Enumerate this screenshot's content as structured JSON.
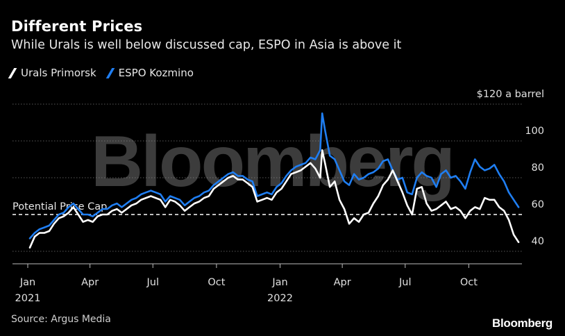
{
  "title": "Different Prices",
  "subtitle": "While Urals is well below discussed cap, ESPO in Asia is above it",
  "source": "Source: Argus Media",
  "logo": "Bloomberg",
  "watermark": "Bloomberg",
  "colors": {
    "urals": "#ffffff",
    "espo": "#1f7ef2",
    "background": "#000000",
    "grid": "#5a5a5a"
  },
  "chart_data": {
    "type": "line",
    "title": "Different Prices",
    "subtitle": "While Urals is well below discussed cap, ESPO in Asia is above it",
    "y_unit_label": "$120 a barrel",
    "ylim": [
      40,
      120
    ],
    "y_ticks": [
      40,
      60,
      80,
      100,
      120
    ],
    "y_tick_labels": [
      "40",
      "60",
      "80",
      "100",
      "$120 a barrel"
    ],
    "x_ticks": [
      {
        "date": "2021-01-01",
        "label": "Jan",
        "sublabel": "2021"
      },
      {
        "date": "2021-04-01",
        "label": "Apr",
        "sublabel": ""
      },
      {
        "date": "2021-07-01",
        "label": "Jul",
        "sublabel": ""
      },
      {
        "date": "2021-10-01",
        "label": "Oct",
        "sublabel": ""
      },
      {
        "date": "2022-01-01",
        "label": "Jan",
        "sublabel": "2022"
      },
      {
        "date": "2022-04-01",
        "label": "Apr",
        "sublabel": ""
      },
      {
        "date": "2022-07-01",
        "label": "Jul",
        "sublabel": ""
      },
      {
        "date": "2022-10-01",
        "label": "Oct",
        "sublabel": ""
      }
    ],
    "xlim": [
      "2021-01-01",
      "2022-12-31"
    ],
    "grid": true,
    "legend_placement": "top-left",
    "reference_line": {
      "value": 60,
      "label": "Potential Price Cap",
      "style": "dashed"
    },
    "series": [
      {
        "name": "Urals Primorsk",
        "color": "#ffffff",
        "points": [
          [
            "2021-01-04",
            42
          ],
          [
            "2021-01-11",
            48
          ],
          [
            "2021-01-18",
            50
          ],
          [
            "2021-01-25",
            50
          ],
          [
            "2021-02-01",
            51
          ],
          [
            "2021-02-08",
            55
          ],
          [
            "2021-02-15",
            58
          ],
          [
            "2021-02-22",
            59
          ],
          [
            "2021-03-01",
            61
          ],
          [
            "2021-03-08",
            64
          ],
          [
            "2021-03-15",
            60
          ],
          [
            "2021-03-22",
            56
          ],
          [
            "2021-03-29",
            57
          ],
          [
            "2021-04-05",
            56
          ],
          [
            "2021-04-12",
            59
          ],
          [
            "2021-04-19",
            60
          ],
          [
            "2021-04-26",
            60
          ],
          [
            "2021-05-03",
            62
          ],
          [
            "2021-05-10",
            63
          ],
          [
            "2021-05-17",
            61
          ],
          [
            "2021-05-24",
            63
          ],
          [
            "2021-05-31",
            65
          ],
          [
            "2021-06-07",
            66
          ],
          [
            "2021-06-14",
            68
          ],
          [
            "2021-06-21",
            69
          ],
          [
            "2021-06-28",
            70
          ],
          [
            "2021-07-05",
            69
          ],
          [
            "2021-07-12",
            68
          ],
          [
            "2021-07-19",
            64
          ],
          [
            "2021-07-26",
            68
          ],
          [
            "2021-08-02",
            67
          ],
          [
            "2021-08-09",
            65
          ],
          [
            "2021-08-16",
            62
          ],
          [
            "2021-08-23",
            64
          ],
          [
            "2021-08-30",
            66
          ],
          [
            "2021-09-06",
            67
          ],
          [
            "2021-09-13",
            69
          ],
          [
            "2021-09-20",
            70
          ],
          [
            "2021-09-27",
            74
          ],
          [
            "2021-10-04",
            76
          ],
          [
            "2021-10-11",
            78
          ],
          [
            "2021-10-18",
            80
          ],
          [
            "2021-10-25",
            81
          ],
          [
            "2021-11-01",
            79
          ],
          [
            "2021-11-08",
            79
          ],
          [
            "2021-11-15",
            77
          ],
          [
            "2021-11-22",
            75
          ],
          [
            "2021-11-29",
            67
          ],
          [
            "2021-12-06",
            68
          ],
          [
            "2021-12-13",
            69
          ],
          [
            "2021-12-20",
            68
          ],
          [
            "2021-12-27",
            72
          ],
          [
            "2022-01-03",
            74
          ],
          [
            "2022-01-10",
            78
          ],
          [
            "2022-01-17",
            82
          ],
          [
            "2022-01-24",
            83
          ],
          [
            "2022-01-31",
            84
          ],
          [
            "2022-02-07",
            86
          ],
          [
            "2022-02-14",
            88
          ],
          [
            "2022-02-21",
            85
          ],
          [
            "2022-02-28",
            80
          ],
          [
            "2022-03-03",
            95
          ],
          [
            "2022-03-07",
            88
          ],
          [
            "2022-03-14",
            75
          ],
          [
            "2022-03-21",
            78
          ],
          [
            "2022-03-28",
            68
          ],
          [
            "2022-04-04",
            63
          ],
          [
            "2022-04-11",
            55
          ],
          [
            "2022-04-18",
            58
          ],
          [
            "2022-04-25",
            56
          ],
          [
            "2022-05-02",
            60
          ],
          [
            "2022-05-09",
            61
          ],
          [
            "2022-05-16",
            66
          ],
          [
            "2022-05-23",
            70
          ],
          [
            "2022-05-30",
            76
          ],
          [
            "2022-06-06",
            79
          ],
          [
            "2022-06-13",
            84
          ],
          [
            "2022-06-20",
            78
          ],
          [
            "2022-06-27",
            72
          ],
          [
            "2022-07-04",
            65
          ],
          [
            "2022-07-11",
            60
          ],
          [
            "2022-07-18",
            74
          ],
          [
            "2022-07-25",
            75
          ],
          [
            "2022-08-01",
            66
          ],
          [
            "2022-08-08",
            62
          ],
          [
            "2022-08-15",
            63
          ],
          [
            "2022-08-22",
            65
          ],
          [
            "2022-08-29",
            67
          ],
          [
            "2022-09-05",
            63
          ],
          [
            "2022-09-12",
            64
          ],
          [
            "2022-09-19",
            62
          ],
          [
            "2022-09-26",
            58
          ],
          [
            "2022-10-03",
            62
          ],
          [
            "2022-10-10",
            64
          ],
          [
            "2022-10-17",
            63
          ],
          [
            "2022-10-24",
            69
          ],
          [
            "2022-10-31",
            68
          ],
          [
            "2022-11-07",
            68
          ],
          [
            "2022-11-14",
            64
          ],
          [
            "2022-11-21",
            62
          ],
          [
            "2022-11-28",
            57
          ],
          [
            "2022-12-05",
            49
          ],
          [
            "2022-12-12",
            45
          ]
        ]
      },
      {
        "name": "ESPO Kozmino",
        "color": "#1f7ef2",
        "points": [
          [
            "2021-01-04",
            47
          ],
          [
            "2021-01-11",
            50
          ],
          [
            "2021-01-18",
            52
          ],
          [
            "2021-01-25",
            53
          ],
          [
            "2021-02-01",
            54
          ],
          [
            "2021-02-08",
            57
          ],
          [
            "2021-02-15",
            60
          ],
          [
            "2021-02-22",
            61
          ],
          [
            "2021-03-01",
            64
          ],
          [
            "2021-03-08",
            66
          ],
          [
            "2021-03-15",
            63
          ],
          [
            "2021-03-22",
            60
          ],
          [
            "2021-03-29",
            60
          ],
          [
            "2021-04-05",
            59
          ],
          [
            "2021-04-12",
            61
          ],
          [
            "2021-04-19",
            63
          ],
          [
            "2021-04-26",
            63
          ],
          [
            "2021-05-03",
            65
          ],
          [
            "2021-05-10",
            66
          ],
          [
            "2021-05-17",
            64
          ],
          [
            "2021-05-24",
            66
          ],
          [
            "2021-05-31",
            68
          ],
          [
            "2021-06-07",
            69
          ],
          [
            "2021-06-14",
            71
          ],
          [
            "2021-06-21",
            72
          ],
          [
            "2021-06-28",
            73
          ],
          [
            "2021-07-05",
            72
          ],
          [
            "2021-07-12",
            71
          ],
          [
            "2021-07-19",
            67
          ],
          [
            "2021-07-26",
            70
          ],
          [
            "2021-08-02",
            69
          ],
          [
            "2021-08-09",
            68
          ],
          [
            "2021-08-16",
            65
          ],
          [
            "2021-08-23",
            67
          ],
          [
            "2021-08-30",
            69
          ],
          [
            "2021-09-06",
            70
          ],
          [
            "2021-09-13",
            72
          ],
          [
            "2021-09-20",
            73
          ],
          [
            "2021-09-27",
            76
          ],
          [
            "2021-10-04",
            78
          ],
          [
            "2021-10-11",
            80
          ],
          [
            "2021-10-18",
            82
          ],
          [
            "2021-10-25",
            83
          ],
          [
            "2021-11-01",
            81
          ],
          [
            "2021-11-08",
            81
          ],
          [
            "2021-11-15",
            79
          ],
          [
            "2021-11-22",
            78
          ],
          [
            "2021-11-29",
            70
          ],
          [
            "2021-12-06",
            71
          ],
          [
            "2021-12-13",
            72
          ],
          [
            "2021-12-20",
            71
          ],
          [
            "2021-12-27",
            75
          ],
          [
            "2022-01-03",
            77
          ],
          [
            "2022-01-10",
            81
          ],
          [
            "2022-01-17",
            84
          ],
          [
            "2022-01-24",
            86
          ],
          [
            "2022-01-31",
            87
          ],
          [
            "2022-02-07",
            88
          ],
          [
            "2022-02-14",
            91
          ],
          [
            "2022-02-21",
            90
          ],
          [
            "2022-02-28",
            95
          ],
          [
            "2022-03-03",
            115
          ],
          [
            "2022-03-07",
            106
          ],
          [
            "2022-03-14",
            92
          ],
          [
            "2022-03-21",
            90
          ],
          [
            "2022-03-28",
            84
          ],
          [
            "2022-04-04",
            78
          ],
          [
            "2022-04-11",
            76
          ],
          [
            "2022-04-18",
            82
          ],
          [
            "2022-04-25",
            79
          ],
          [
            "2022-05-02",
            80
          ],
          [
            "2022-05-09",
            82
          ],
          [
            "2022-05-16",
            83
          ],
          [
            "2022-05-23",
            85
          ],
          [
            "2022-05-30",
            89
          ],
          [
            "2022-06-06",
            90
          ],
          [
            "2022-06-13",
            84
          ],
          [
            "2022-06-20",
            79
          ],
          [
            "2022-06-27",
            80
          ],
          [
            "2022-07-04",
            72
          ],
          [
            "2022-07-11",
            71
          ],
          [
            "2022-07-18",
            80
          ],
          [
            "2022-07-25",
            83
          ],
          [
            "2022-08-01",
            81
          ],
          [
            "2022-08-08",
            80
          ],
          [
            "2022-08-15",
            75
          ],
          [
            "2022-08-22",
            82
          ],
          [
            "2022-08-29",
            84
          ],
          [
            "2022-09-05",
            80
          ],
          [
            "2022-09-12",
            81
          ],
          [
            "2022-09-19",
            78
          ],
          [
            "2022-09-26",
            74
          ],
          [
            "2022-10-03",
            83
          ],
          [
            "2022-10-10",
            90
          ],
          [
            "2022-10-17",
            86
          ],
          [
            "2022-10-24",
            84
          ],
          [
            "2022-10-31",
            85
          ],
          [
            "2022-11-07",
            87
          ],
          [
            "2022-11-14",
            82
          ],
          [
            "2022-11-21",
            78
          ],
          [
            "2022-11-28",
            72
          ],
          [
            "2022-12-05",
            68
          ],
          [
            "2022-12-12",
            64
          ]
        ]
      }
    ]
  }
}
